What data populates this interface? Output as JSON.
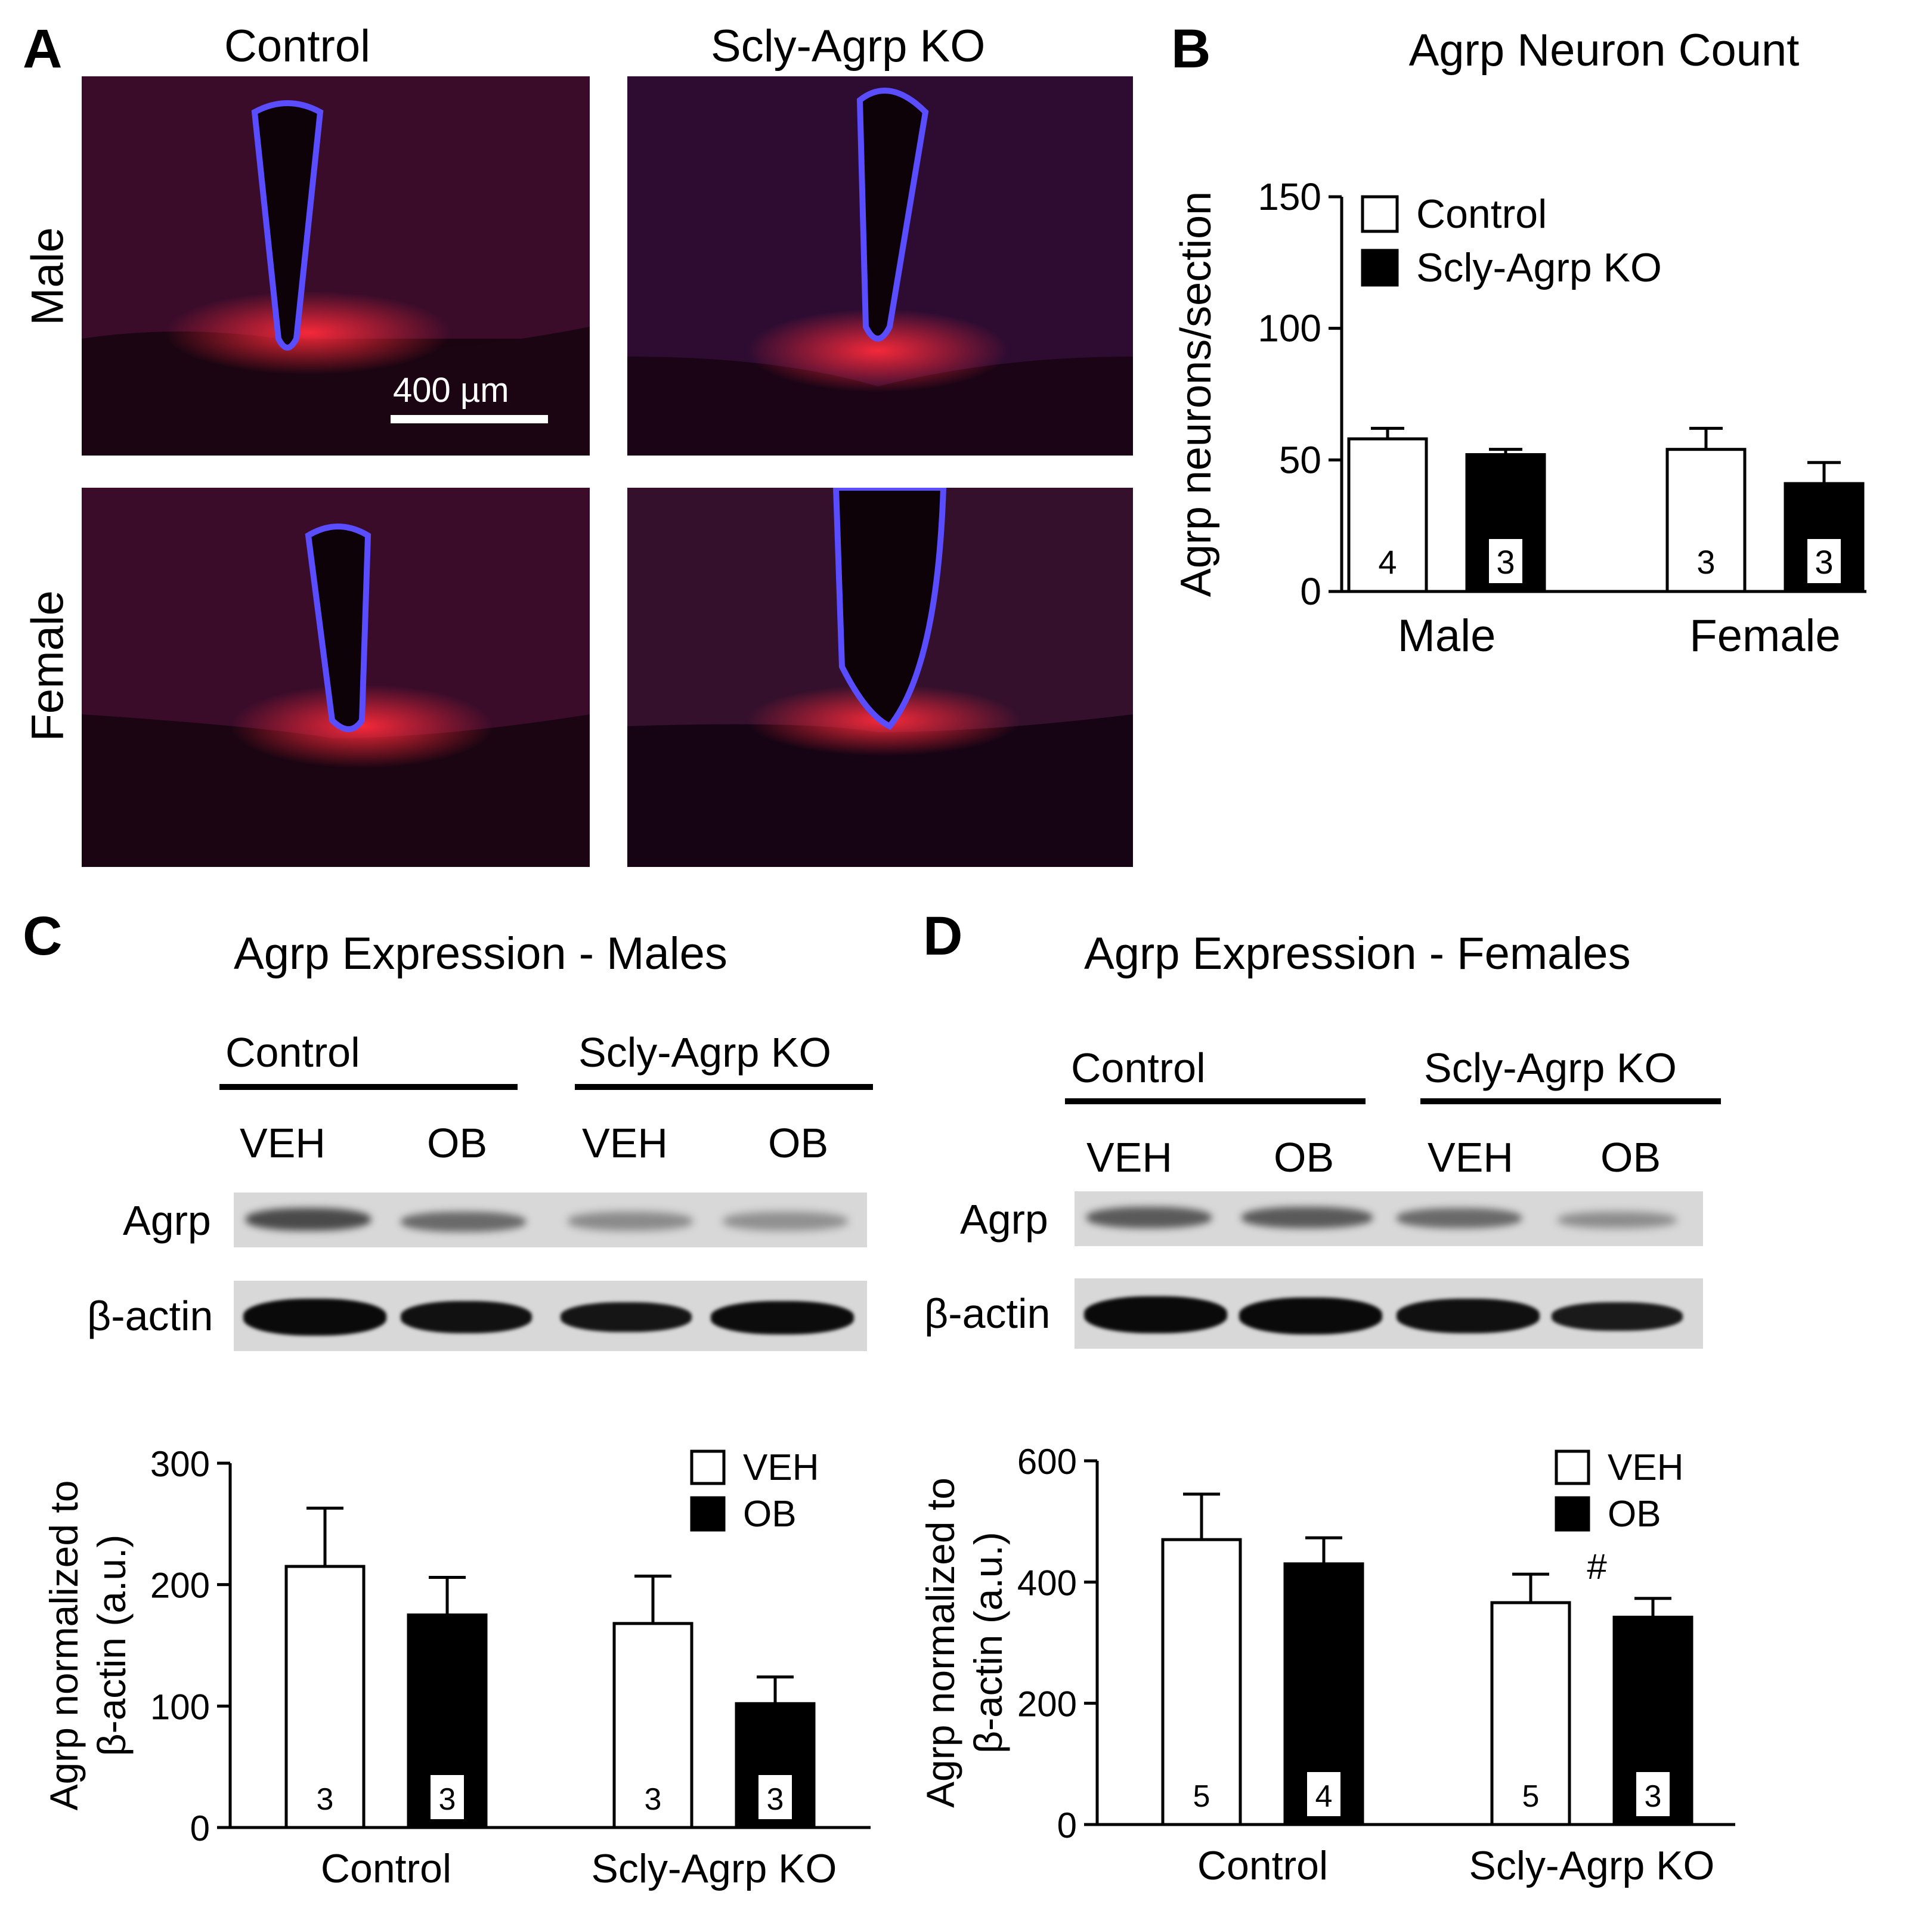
{
  "panel_labels": {
    "a": "A",
    "b": "B",
    "c": "C",
    "d": "D"
  },
  "panel_a": {
    "col_control": "Control",
    "col_ko": "Scly-Agrp KO",
    "row_male": "Male",
    "row_female": "Female",
    "scale_bar": "400 µm"
  },
  "panel_c": {
    "title": "Agrp Expression - Males",
    "group_control": "Control",
    "group_ko": "Scly-Agrp KO",
    "lanes": [
      "VEH",
      "OB",
      "VEH",
      "OB"
    ],
    "row_agrp": "Agrp",
    "row_actin": "β-actin"
  },
  "panel_d": {
    "title": "Agrp Expression - Females",
    "group_control": "Control",
    "group_ko": "Scly-Agrp KO",
    "lanes": [
      "VEH",
      "OB",
      "VEH",
      "OB"
    ],
    "row_agrp": "Agrp",
    "row_actin": "β-actin"
  },
  "colors": {
    "control_fill": "#ffffff",
    "ko_fill": "#000000",
    "stain_red": "#ff2a3a",
    "stain_blue": "#3b3cff"
  },
  "chart_data": [
    {
      "id": "B",
      "type": "bar",
      "title": "Agrp Neuron Count",
      "ylabel": "Agrp neurons/section",
      "xlabel": "",
      "categories": [
        "Male",
        "Female"
      ],
      "series": [
        {
          "name": "Control",
          "values": [
            58,
            54
          ],
          "errors": [
            4,
            8
          ],
          "n": [
            "4",
            "3"
          ],
          "fill": "#ffffff"
        },
        {
          "name": "Scly-Agrp KO",
          "values": [
            52,
            41
          ],
          "errors": [
            2,
            8
          ],
          "n": [
            "3",
            "3"
          ],
          "fill": "#000000"
        }
      ],
      "ylim": [
        0,
        150
      ],
      "yticks": [
        0,
        50,
        100,
        150
      ],
      "legend": "top-left",
      "annotations": []
    },
    {
      "id": "C",
      "type": "bar",
      "title": "",
      "ylabel": "Agrp normalized to β-actin (a.u.)",
      "ylabel_lines": [
        "Agrp normalized to",
        "β-actin (a.u.)"
      ],
      "xlabel": "",
      "categories": [
        "Control",
        "Scly-Agrp KO"
      ],
      "series": [
        {
          "name": "VEH",
          "values": [
            215,
            168
          ],
          "errors": [
            48,
            39
          ],
          "n": [
            "3",
            "3"
          ],
          "fill": "#ffffff"
        },
        {
          "name": "OB",
          "values": [
            175,
            102
          ],
          "errors": [
            31,
            22
          ],
          "n": [
            "3",
            "3"
          ],
          "fill": "#000000"
        }
      ],
      "ylim": [
        0,
        300
      ],
      "yticks": [
        0,
        100,
        200,
        300
      ],
      "legend": "top-right",
      "annotations": []
    },
    {
      "id": "D",
      "type": "bar",
      "title": "",
      "ylabel": "Agrp normalized to β-actin (a.u.)",
      "ylabel_lines": [
        "Agrp normalized to",
        "β-actin (a.u.)"
      ],
      "xlabel": "",
      "categories": [
        "Control",
        "Scly-Agrp KO"
      ],
      "series": [
        {
          "name": "VEH",
          "values": [
            470,
            366
          ],
          "errors": [
            75,
            47
          ],
          "n": [
            "5",
            "5"
          ],
          "fill": "#ffffff"
        },
        {
          "name": "OB",
          "values": [
            430,
            342
          ],
          "errors": [
            43,
            31
          ],
          "n": [
            "4",
            "3"
          ],
          "fill": "#000000"
        }
      ],
      "ylim": [
        0,
        600
      ],
      "yticks": [
        0,
        200,
        400,
        600
      ],
      "legend": "top-right",
      "annotations": [
        "#"
      ]
    }
  ]
}
